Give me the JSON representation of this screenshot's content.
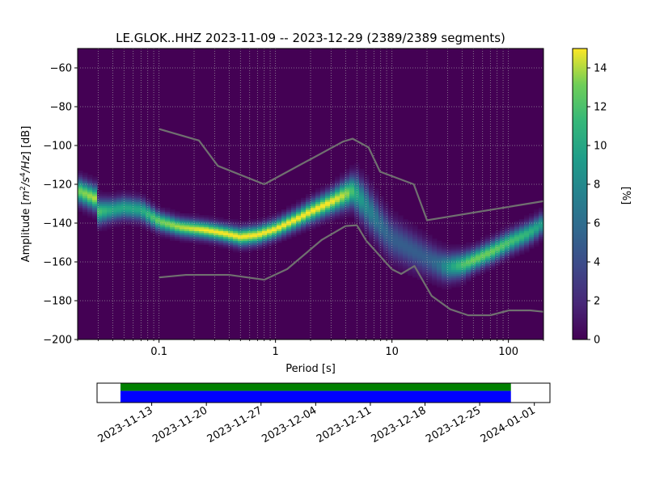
{
  "chart_data": [
    {
      "type": "heatmap",
      "title": "LE.GLOK..HHZ   2023-11-09 -- 2023-12-29  (2389/2389 segments)",
      "xlabel": "Period [s]",
      "ylabel": "Amplitude [m²/s⁴/Hz] [dB]",
      "ylabel_parts": {
        "prefix": "Amplitude [",
        "m": "m",
        "m_exp": "2",
        "s": "/s",
        "s_exp": "4",
        "hz": "/Hz",
        "suffix": "] [dB]"
      },
      "x_scale": "log",
      "xlim": [
        0.02,
        200
      ],
      "ylim": [
        -200,
        -50
      ],
      "grid": true,
      "x_ticks": [
        {
          "value": 0.1,
          "label": "0.1"
        },
        {
          "value": 1,
          "label": "1"
        },
        {
          "value": 10,
          "label": "10"
        },
        {
          "value": 100,
          "label": "100"
        }
      ],
      "y_ticks": [
        {
          "value": -60,
          "label": "−60"
        },
        {
          "value": -80,
          "label": "−80"
        },
        {
          "value": -100,
          "label": "−100"
        },
        {
          "value": -120,
          "label": "−120"
        },
        {
          "value": -140,
          "label": "−140"
        },
        {
          "value": -160,
          "label": "−160"
        },
        {
          "value": -180,
          "label": "−180"
        },
        {
          "value": -200,
          "label": "−200"
        }
      ],
      "colormap": "viridis",
      "colorbar": {
        "label": "[%]",
        "range": [
          0,
          15
        ],
        "ticks": [
          {
            "value": 0,
            "label": "0"
          },
          {
            "value": 2,
            "label": "2"
          },
          {
            "value": 4,
            "label": "4"
          },
          {
            "value": 6,
            "label": "6"
          },
          {
            "value": 8,
            "label": "8"
          },
          {
            "value": 10,
            "label": "10"
          },
          {
            "value": 12,
            "label": "12"
          },
          {
            "value": 14,
            "label": "14"
          }
        ]
      },
      "mode_curve": {
        "period": [
          0.02,
          0.028,
          0.03,
          0.04,
          0.05,
          0.07,
          0.1,
          0.15,
          0.25,
          0.35,
          0.5,
          0.7,
          1,
          1.5,
          2,
          3,
          4,
          4.5,
          5,
          6,
          8,
          10,
          15,
          20,
          25,
          30,
          40,
          50,
          70,
          100,
          150,
          200
        ],
        "db": [
          -123,
          -127,
          -134,
          -133,
          -132,
          -133,
          -139,
          -142,
          -143.5,
          -145,
          -147,
          -146,
          -143,
          -138,
          -134,
          -129,
          -125,
          -123.5,
          -125,
          -131,
          -141,
          -148,
          -154,
          -158,
          -161,
          -162.5,
          -161.5,
          -159,
          -155,
          -150,
          -145,
          -140
        ],
        "spread_db": [
          4,
          4,
          4,
          3.5,
          3.5,
          3.5,
          3,
          2.8,
          2.8,
          2.8,
          3,
          3,
          3,
          3.2,
          3.5,
          3.8,
          4.5,
          5,
          6,
          6.5,
          6.5,
          6.5,
          6,
          5.5,
          5,
          4.5,
          4,
          3.5,
          3.5,
          3.5,
          3.5,
          3.5
        ],
        "peak_pct": [
          13,
          14,
          12,
          10,
          10,
          10,
          13,
          14,
          15,
          15,
          15,
          15,
          15,
          15,
          15,
          15,
          14,
          12,
          10,
          8,
          6,
          5,
          5,
          5,
          6,
          9,
          12,
          13,
          13,
          12,
          11,
          9
        ]
      },
      "series": [
        {
          "role": "noise-model-high",
          "color": "#707070",
          "period": [
            0.1,
            0.22,
            0.32,
            0.8,
            3.8,
            4.6,
            6.3,
            7.9,
            15.4,
            20,
            200
          ],
          "db": [
            -91.5,
            -97.4,
            -110.5,
            -120,
            -98,
            -96.5,
            -101,
            -113.5,
            -120,
            -138.5,
            -128.7
          ]
        },
        {
          "role": "noise-model-low",
          "color": "#707070",
          "period": [
            0.1,
            0.17,
            0.4,
            0.8,
            1.26,
            2.5,
            4,
            5,
            6,
            10,
            12,
            15.6,
            21.9,
            31.6,
            45,
            70,
            101,
            154,
            200
          ],
          "db": [
            -168,
            -166.7,
            -166.7,
            -169.2,
            -163.7,
            -148.6,
            -141.5,
            -141.1,
            -149,
            -163.8,
            -166.2,
            -162.1,
            -177.5,
            -184.4,
            -187.5,
            -187.5,
            -185,
            -185,
            -185.7
          ]
        }
      ]
    },
    {
      "type": "timeline",
      "date_range": [
        "2023-11-09",
        "2023-12-29"
      ],
      "axis_range": [
        "2023-11-06",
        "2024-01-03"
      ],
      "tick_labels": [
        "2023-11-13",
        "2023-11-20",
        "2023-11-27",
        "2023-12-04",
        "2023-12-11",
        "2023-12-18",
        "2023-12-25",
        "2024-01-01"
      ],
      "tick_dates": [
        "2023-11-13",
        "2023-11-20",
        "2023-11-27",
        "2023-12-04",
        "2023-12-11",
        "2023-12-18",
        "2023-12-25",
        "2024-01-01"
      ],
      "bars": [
        {
          "name": "",
          "color": "#008000",
          "start": "2023-11-09",
          "end": "2023-12-29"
        },
        {
          "name": "",
          "color": "#0000ff",
          "start": "2023-11-09",
          "end": "2023-12-29"
        }
      ]
    }
  ]
}
